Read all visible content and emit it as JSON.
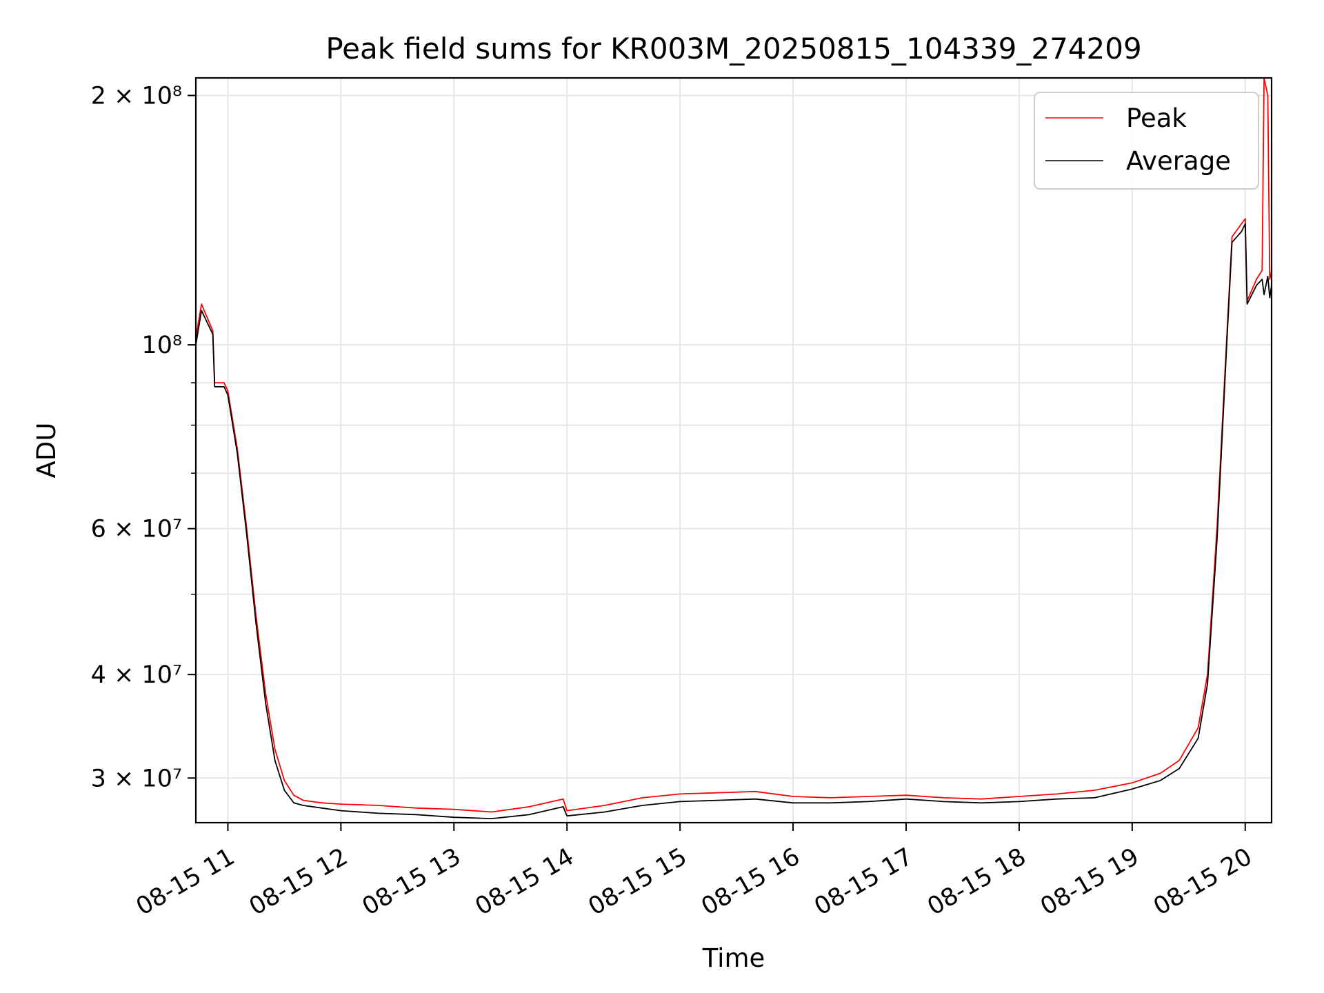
{
  "chart_data": {
    "type": "line",
    "title": "Peak field sums for KR003M_20250815_104339_274209",
    "xlabel": "Time",
    "ylabel": "ADU",
    "yscale": "log",
    "grid": true,
    "legend_position": "top-right",
    "xlim": [
      "2025-08-15 10:43",
      "2025-08-15 20:14"
    ],
    "ylim": [
      26500000,
      210000000
    ],
    "x_ticks": [
      "08-15 11",
      "08-15 12",
      "08-15 13",
      "08-15 14",
      "08-15 15",
      "08-15 16",
      "08-15 17",
      "08-15 18",
      "08-15 19",
      "08-15 20"
    ],
    "y_ticks": [
      {
        "value": 30000000,
        "label": "3 × 10⁷"
      },
      {
        "value": 40000000,
        "label": "4 × 10⁷"
      },
      {
        "value": 60000000,
        "label": "6 × 10⁷"
      },
      {
        "value": 100000000,
        "label": "10⁸"
      },
      {
        "value": 200000000,
        "label": "2 × 10⁸"
      }
    ],
    "y_minor_ticks": [
      50000000,
      70000000,
      80000000,
      90000000
    ],
    "series": [
      {
        "name": "Peak",
        "color": "#ff0000",
        "points": [
          [
            "2025-08-15 10:43",
            102000000
          ],
          [
            "2025-08-15 10:46",
            112000000
          ],
          [
            "2025-08-15 10:52",
            104000000
          ],
          [
            "2025-08-15 10:53",
            90000000
          ],
          [
            "2025-08-15 10:58",
            90000000
          ],
          [
            "2025-08-15 11:00",
            88000000
          ],
          [
            "2025-08-15 11:05",
            75000000
          ],
          [
            "2025-08-15 11:10",
            60000000
          ],
          [
            "2025-08-15 11:15",
            47000000
          ],
          [
            "2025-08-15 11:20",
            38000000
          ],
          [
            "2025-08-15 11:25",
            32500000
          ],
          [
            "2025-08-15 11:30",
            29800000
          ],
          [
            "2025-08-15 11:35",
            28600000
          ],
          [
            "2025-08-15 11:40",
            28200000
          ],
          [
            "2025-08-15 11:50",
            28000000
          ],
          [
            "2025-08-15 12:00",
            27900000
          ],
          [
            "2025-08-15 12:20",
            27800000
          ],
          [
            "2025-08-15 12:40",
            27600000
          ],
          [
            "2025-08-15 13:00",
            27500000
          ],
          [
            "2025-08-15 13:20",
            27300000
          ],
          [
            "2025-08-15 13:40",
            27700000
          ],
          [
            "2025-08-15 13:58",
            28300000
          ],
          [
            "2025-08-15 14:00",
            27400000
          ],
          [
            "2025-08-15 14:20",
            27800000
          ],
          [
            "2025-08-15 14:40",
            28400000
          ],
          [
            "2025-08-15 15:00",
            28700000
          ],
          [
            "2025-08-15 15:20",
            28800000
          ],
          [
            "2025-08-15 15:40",
            28900000
          ],
          [
            "2025-08-15 16:00",
            28500000
          ],
          [
            "2025-08-15 16:20",
            28400000
          ],
          [
            "2025-08-15 16:40",
            28500000
          ],
          [
            "2025-08-15 17:00",
            28600000
          ],
          [
            "2025-08-15 17:20",
            28400000
          ],
          [
            "2025-08-15 17:40",
            28300000
          ],
          [
            "2025-08-15 18:00",
            28500000
          ],
          [
            "2025-08-15 18:20",
            28700000
          ],
          [
            "2025-08-15 18:40",
            29000000
          ],
          [
            "2025-08-15 19:00",
            29600000
          ],
          [
            "2025-08-15 19:15",
            30400000
          ],
          [
            "2025-08-15 19:25",
            31500000
          ],
          [
            "2025-08-15 19:35",
            34500000
          ],
          [
            "2025-08-15 19:40",
            40000000
          ],
          [
            "2025-08-15 19:45",
            60000000
          ],
          [
            "2025-08-15 19:50",
            100000000
          ],
          [
            "2025-08-15 19:53",
            135000000
          ],
          [
            "2025-08-15 19:58",
            140000000
          ],
          [
            "2025-08-15 20:00",
            142000000
          ],
          [
            "2025-08-15 20:01",
            113000000
          ],
          [
            "2025-08-15 20:06",
            120000000
          ],
          [
            "2025-08-15 20:09",
            123000000
          ],
          [
            "2025-08-15 20:10",
            210000000
          ],
          [
            "2025-08-15 20:12",
            200000000
          ],
          [
            "2025-08-15 20:13",
            120000000
          ],
          [
            "2025-08-15 20:14",
            123000000
          ]
        ]
      },
      {
        "name": "Average",
        "color": "#000000",
        "points": [
          [
            "2025-08-15 10:43",
            100000000
          ],
          [
            "2025-08-15 10:46",
            110000000
          ],
          [
            "2025-08-15 10:52",
            103000000
          ],
          [
            "2025-08-15 10:53",
            89000000
          ],
          [
            "2025-08-15 10:58",
            89000000
          ],
          [
            "2025-08-15 11:00",
            87000000
          ],
          [
            "2025-08-15 11:05",
            74000000
          ],
          [
            "2025-08-15 11:10",
            59000000
          ],
          [
            "2025-08-15 11:15",
            46000000
          ],
          [
            "2025-08-15 11:20",
            37000000
          ],
          [
            "2025-08-15 11:25",
            31500000
          ],
          [
            "2025-08-15 11:30",
            29000000
          ],
          [
            "2025-08-15 11:35",
            28000000
          ],
          [
            "2025-08-15 11:40",
            27800000
          ],
          [
            "2025-08-15 11:50",
            27600000
          ],
          [
            "2025-08-15 12:00",
            27400000
          ],
          [
            "2025-08-15 12:20",
            27200000
          ],
          [
            "2025-08-15 12:40",
            27100000
          ],
          [
            "2025-08-15 13:00",
            26900000
          ],
          [
            "2025-08-15 13:20",
            26800000
          ],
          [
            "2025-08-15 13:40",
            27100000
          ],
          [
            "2025-08-15 13:58",
            27700000
          ],
          [
            "2025-08-15 14:00",
            27000000
          ],
          [
            "2025-08-15 14:20",
            27300000
          ],
          [
            "2025-08-15 14:40",
            27800000
          ],
          [
            "2025-08-15 15:00",
            28100000
          ],
          [
            "2025-08-15 15:20",
            28200000
          ],
          [
            "2025-08-15 15:40",
            28300000
          ],
          [
            "2025-08-15 16:00",
            28000000
          ],
          [
            "2025-08-15 16:20",
            28000000
          ],
          [
            "2025-08-15 16:40",
            28100000
          ],
          [
            "2025-08-15 17:00",
            28300000
          ],
          [
            "2025-08-15 17:20",
            28100000
          ],
          [
            "2025-08-15 17:40",
            28000000
          ],
          [
            "2025-08-15 18:00",
            28100000
          ],
          [
            "2025-08-15 18:20",
            28300000
          ],
          [
            "2025-08-15 18:40",
            28400000
          ],
          [
            "2025-08-15 19:00",
            29100000
          ],
          [
            "2025-08-15 19:15",
            29800000
          ],
          [
            "2025-08-15 19:25",
            30800000
          ],
          [
            "2025-08-15 19:35",
            33500000
          ],
          [
            "2025-08-15 19:40",
            39000000
          ],
          [
            "2025-08-15 19:45",
            58000000
          ],
          [
            "2025-08-15 19:50",
            98000000
          ],
          [
            "2025-08-15 19:53",
            133000000
          ],
          [
            "2025-08-15 19:58",
            137000000
          ],
          [
            "2025-08-15 20:00",
            140000000
          ],
          [
            "2025-08-15 20:01",
            112000000
          ],
          [
            "2025-08-15 20:06",
            118000000
          ],
          [
            "2025-08-15 20:09",
            120000000
          ],
          [
            "2025-08-15 20:10",
            115000000
          ],
          [
            "2025-08-15 20:12",
            121000000
          ],
          [
            "2025-08-15 20:13",
            114000000
          ],
          [
            "2025-08-15 20:14",
            118000000
          ]
        ]
      }
    ]
  }
}
